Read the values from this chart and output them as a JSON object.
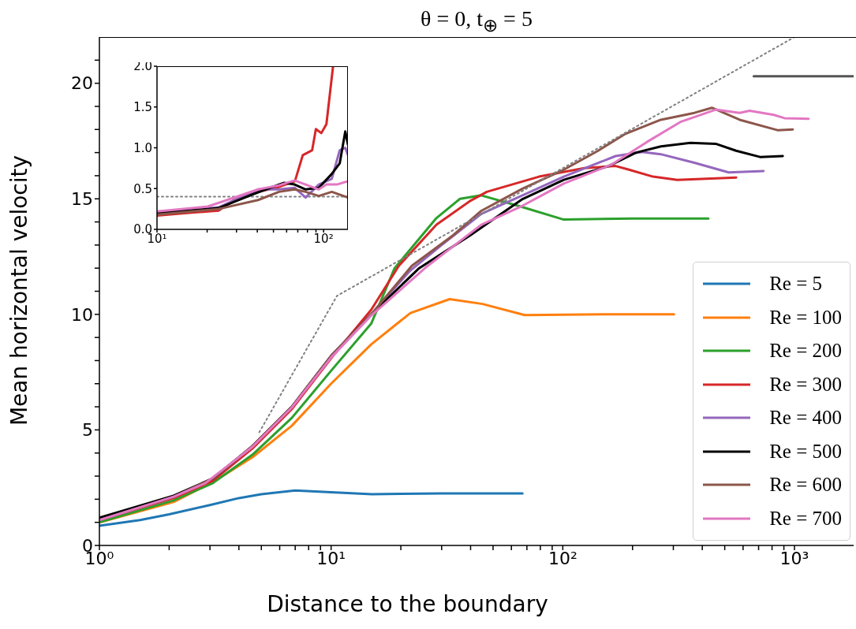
{
  "chart_data": [
    {
      "type": "line",
      "title": "θ = 0, t$_{⊕}$ = 5",
      "xlabel": "Distance to the boundary",
      "ylabel": "Mean horizontal velocity",
      "log": "x",
      "legend": "bottom right",
      "line_style": "solid",
      "xlim": [
        1,
        1800
      ],
      "xticks": [
        {
          "value": 1,
          "label": "10⁰"
        },
        {
          "value": 2,
          "label": null
        },
        {
          "value": 3,
          "label": null
        },
        {
          "value": 4,
          "label": null
        },
        {
          "value": 5,
          "label": null
        },
        {
          "value": 6,
          "label": null
        },
        {
          "value": 7,
          "label": null
        },
        {
          "value": 8,
          "label": null
        },
        {
          "value": 9,
          "label": null
        },
        {
          "value": 10,
          "label": "10¹"
        },
        {
          "value": 20,
          "label": null
        },
        {
          "value": 30,
          "label": null
        },
        {
          "value": 40,
          "label": null
        },
        {
          "value": 50,
          "label": null
        },
        {
          "value": 60,
          "label": null
        },
        {
          "value": 70,
          "label": null
        },
        {
          "value": 80,
          "label": null
        },
        {
          "value": 90,
          "label": null
        },
        {
          "value": 100,
          "label": "10²"
        },
        {
          "value": 200,
          "label": null
        },
        {
          "value": 300,
          "label": null
        },
        {
          "value": 400,
          "label": null
        },
        {
          "value": 500,
          "label": null
        },
        {
          "value": 600,
          "label": null
        },
        {
          "value": 700,
          "label": null
        },
        {
          "value": 800,
          "label": null
        },
        {
          "value": 900,
          "label": null
        },
        {
          "value": 1000,
          "label": "10³"
        }
      ],
      "ylim": [
        0,
        22
      ],
      "yticks": [
        0,
        {
          "value": 1,
          "label": null
        },
        {
          "value": 2,
          "label": null
        },
        {
          "value": 3,
          "label": null
        },
        {
          "value": 4,
          "label": null
        },
        5,
        {
          "value": 6,
          "label": null
        },
        {
          "value": 7,
          "label": null
        },
        {
          "value": 8,
          "label": null
        },
        {
          "value": 9,
          "label": null
        },
        10,
        {
          "value": 11,
          "label": null
        },
        {
          "value": 12,
          "label": null
        },
        {
          "value": 13,
          "label": null
        },
        {
          "value": 14,
          "label": null
        },
        15,
        {
          "value": 16,
          "label": null
        },
        {
          "value": 17,
          "label": null
        },
        {
          "value": 18,
          "label": null
        },
        {
          "value": 19,
          "label": null
        },
        20,
        {
          "value": 21,
          "label": null
        }
      ],
      "series": [
        {
          "name": "Re = 5",
          "color": "#1f77b4",
          "x": [
            1,
            1.5,
            2,
            3,
            4,
            5,
            7,
            10,
            15,
            20,
            30,
            67
          ],
          "values": [
            0.85,
            1.1,
            1.35,
            1.75,
            2.05,
            2.22,
            2.38,
            2.3,
            2.22,
            2.23,
            2.25,
            2.25
          ]
        },
        {
          "name": "Re = 100",
          "color": "#ff7f0e",
          "x": [
            1,
            2.09,
            3.09,
            4.58,
            6.77,
            10,
            14.9,
            22,
            32.5,
            45,
            68.5,
            150,
            302
          ],
          "values": [
            1.0,
            1.88,
            2.74,
            3.82,
            5.18,
            7.0,
            8.7,
            10.06,
            10.66,
            10.45,
            9.97,
            10.0,
            10.0
          ]
        },
        {
          "name": "Re = 200",
          "color": "#2ca02c",
          "x": [
            1,
            2.09,
            3.09,
            4.58,
            6.77,
            10,
            14.9,
            18.8,
            28.5,
            36,
            44.5,
            67,
            101,
            200,
            425
          ],
          "values": [
            1.0,
            1.95,
            2.7,
            3.93,
            5.52,
            7.56,
            9.6,
            12.0,
            14.17,
            15.0,
            15.15,
            14.64,
            14.1,
            14.15,
            14.15
          ]
        },
        {
          "name": "Re = 300",
          "color": "#d62728",
          "x": [
            1,
            2.09,
            3.09,
            4.58,
            6.77,
            10,
            14.9,
            19.6,
            28.5,
            40,
            47,
            79,
            124,
            169,
            193,
            245,
            312,
            560
          ],
          "values": [
            1.1,
            2.05,
            2.8,
            4.2,
            5.9,
            8.1,
            10.2,
            12.1,
            13.88,
            14.92,
            15.3,
            15.96,
            16.33,
            16.42,
            16.26,
            15.96,
            15.82,
            15.92
          ]
        },
        {
          "name": "Re = 400",
          "color": "#9467bd",
          "x": [
            1,
            2.09,
            3.09,
            4.58,
            6.77,
            10,
            14.9,
            22,
            30,
            44.5,
            67,
            101,
            169,
            220,
            265,
            370,
            520,
            735
          ],
          "values": [
            1.1,
            2.1,
            2.9,
            4.3,
            6.0,
            8.2,
            10.0,
            11.9,
            13.0,
            14.35,
            15.15,
            15.96,
            16.85,
            17.03,
            16.93,
            16.56,
            16.14,
            16.2
          ]
        },
        {
          "name": "Re = 500",
          "color": "#000000",
          "x": [
            1,
            2.09,
            3.09,
            4.58,
            6.77,
            10,
            14.9,
            24,
            40,
            67,
            101,
            157,
            207,
            265,
            355,
            457,
            560,
            710,
            890
          ],
          "values": [
            1.2,
            2.15,
            2.9,
            4.3,
            6.0,
            8.2,
            10.0,
            12.0,
            13.43,
            14.99,
            15.82,
            16.41,
            17.0,
            17.27,
            17.42,
            17.38,
            17.08,
            16.81,
            16.85
          ]
        },
        {
          "name": "Re = 600",
          "color": "#8c564b",
          "x": [
            1,
            2.09,
            3.09,
            4.58,
            6.77,
            10,
            14.9,
            22.3,
            33.7,
            44.5,
            67,
            101,
            142,
            187,
            265,
            370,
            440,
            580,
            845,
            983
          ],
          "values": [
            1.1,
            2.1,
            2.9,
            4.3,
            6.0,
            8.2,
            10.0,
            12.1,
            13.43,
            14.48,
            15.44,
            16.26,
            17.08,
            17.82,
            18.42,
            18.72,
            18.94,
            18.42,
            17.97,
            18.0
          ]
        },
        {
          "name": "Re = 700",
          "color": "#e377c2",
          "x": [
            1,
            2.09,
            2.86,
            4.58,
            6.77,
            10,
            14.9,
            25.6,
            44.5,
            67,
            101,
            163,
            230,
            324,
            457,
            580,
            640,
            815,
            905,
            1150
          ],
          "values": [
            1.1,
            2.11,
            2.69,
            4.27,
            5.97,
            8.13,
            9.95,
            12.03,
            13.88,
            14.7,
            15.66,
            16.49,
            17.45,
            18.34,
            18.86,
            18.72,
            18.81,
            18.63,
            18.49,
            18.46
          ]
        },
        {
          "color": "#808080",
          "line_style": "dotted",
          "x": [
            4.9,
            10.6,
            1000
          ],
          "values": [
            4.9,
            10.8,
            22
          ]
        },
        {
          "color": "#555555",
          "x": [
            667,
            1800
          ],
          "values": [
            20.3,
            20.3
          ]
        }
      ]
    },
    {
      "type": "line",
      "log": "x",
      "line_style": "solid",
      "xlim": [
        10,
        140
      ],
      "xticks": [
        {
          "value": 10,
          "label": "10¹"
        },
        {
          "value": 20,
          "label": null
        },
        {
          "value": 30,
          "label": null
        },
        {
          "value": 40,
          "label": null
        },
        {
          "value": 50,
          "label": null
        },
        {
          "value": 60,
          "label": null
        },
        {
          "value": 70,
          "label": null
        },
        {
          "value": 80,
          "label": null
        },
        {
          "value": 90,
          "label": null
        },
        {
          "value": 100,
          "label": "10²"
        }
      ],
      "ylim": [
        0,
        2
      ],
      "yticks": [
        {
          "value": 0,
          "label": "0.0"
        },
        {
          "value": 0.5,
          "label": "0.5"
        },
        {
          "value": 1,
          "label": "1.0"
        },
        {
          "value": 1.5,
          "label": "1.5"
        },
        {
          "value": 2,
          "label": "2.0"
        }
      ],
      "series": [
        {
          "color": "#808080",
          "line_style": "dotted",
          "x": [
            10,
            140
          ],
          "values": [
            0.4,
            0.4
          ]
        },
        {
          "color": "#d62728",
          "x": [
            10,
            15.1,
            23.4,
            29,
            40.5,
            54,
            67.3,
            75,
            85.4,
            89.9,
            96.9,
            104,
            114
          ],
          "values": [
            0.17,
            0.2,
            0.23,
            0.36,
            0.46,
            0.52,
            0.59,
            0.91,
            0.97,
            1.23,
            1.18,
            1.29,
            2.0
          ]
        },
        {
          "color": "#9467bd",
          "x": [
            10,
            23.4,
            40.5,
            54,
            67,
            78,
            93.6,
            112,
            125,
            135,
            140
          ],
          "values": [
            0.2,
            0.27,
            0.49,
            0.49,
            0.51,
            0.39,
            0.55,
            0.62,
            0.97,
            1.0,
            0.91
          ]
        },
        {
          "color": "#000000",
          "x": [
            10,
            23.4,
            37.6,
            54,
            58,
            67,
            78,
            93.6,
            112,
            125,
            135,
            140
          ],
          "values": [
            0.2,
            0.26,
            0.43,
            0.55,
            0.57,
            0.55,
            0.49,
            0.51,
            0.68,
            0.81,
            1.2,
            1.04
          ]
        },
        {
          "color": "#8c564b",
          "x": [
            10,
            23.4,
            40.5,
            54,
            67,
            78,
            93.6,
            112,
            140
          ],
          "values": [
            0.18,
            0.25,
            0.36,
            0.46,
            0.49,
            0.46,
            0.41,
            0.46,
            0.39
          ]
        },
        {
          "color": "#e377c2",
          "x": [
            10,
            20.2,
            40.5,
            54,
            67,
            78,
            93.6,
            104,
            120,
            140
          ],
          "values": [
            0.22,
            0.28,
            0.49,
            0.54,
            0.6,
            0.55,
            0.49,
            0.55,
            0.55,
            0.59
          ]
        }
      ]
    }
  ]
}
